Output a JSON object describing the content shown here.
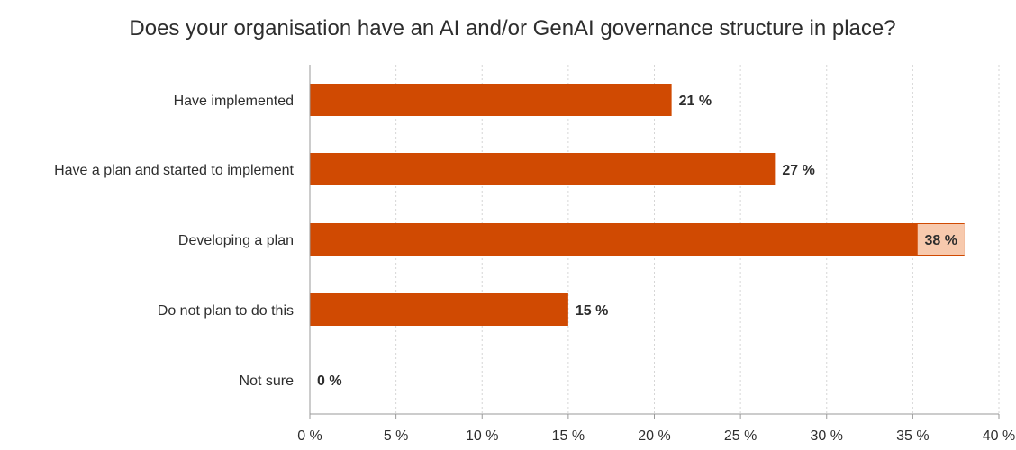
{
  "chart_data": {
    "type": "bar",
    "orientation": "horizontal",
    "title": "Does your organisation have an AI and/or GenAI governance structure in place?",
    "categories": [
      "Have implemented",
      "Have a plan and started to implement",
      "Developing a plan",
      "Do not plan to do this",
      "Not sure"
    ],
    "values": [
      21,
      27,
      38,
      15,
      0
    ],
    "value_labels": [
      "21 %",
      "27 %",
      "38 %",
      "15 %",
      "0 %"
    ],
    "x_ticks": [
      0,
      5,
      10,
      15,
      20,
      25,
      30,
      35,
      40
    ],
    "x_tick_labels": [
      "0 %",
      "5 %",
      "10 %",
      "15 %",
      "20 %",
      "25 %",
      "30 %",
      "35 %",
      "40 %"
    ],
    "xlim": [
      0,
      40
    ],
    "xlabel": "",
    "ylabel": "",
    "grid": "vertical dashed",
    "legend": "none",
    "colors": {
      "bar": "#d04a02",
      "highlight_bg": "#f7c9ad",
      "grid": "#d6d6d6",
      "axis": "#9a9a9a",
      "text": "#2d2d2d"
    }
  }
}
